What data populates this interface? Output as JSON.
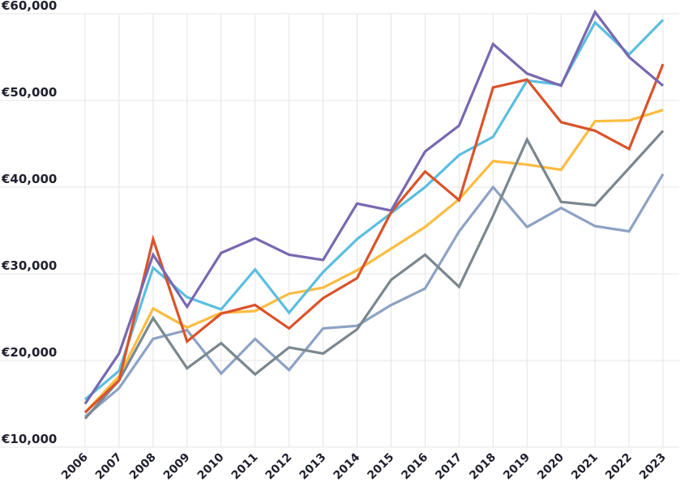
{
  "chart_data": {
    "type": "line",
    "title": "",
    "xlabel": "",
    "ylabel": "",
    "x": [
      "2006",
      "2007",
      "2008",
      "2009",
      "2010",
      "2011",
      "2012",
      "2013",
      "2014",
      "2015",
      "2016",
      "2017",
      "2018",
      "2019",
      "2020",
      "2021",
      "2022",
      "2023"
    ],
    "ylim": [
      10000,
      60000
    ],
    "yticks": [
      10000,
      20000,
      30000,
      40000,
      50000,
      60000
    ],
    "ytick_labels": [
      "€10,000",
      "€20,000",
      "€30,000",
      "€40,000",
      "€50,000",
      "€60,000"
    ],
    "grid": true,
    "legend": "none",
    "series": [
      {
        "color": "#fbbc41",
        "values": [
          14000,
          18200,
          26000,
          23800,
          25500,
          25700,
          27700,
          28400,
          30400,
          32900,
          35400,
          38600,
          43000,
          42600,
          42000,
          47600,
          47700,
          48900
        ]
      },
      {
        "color": "#8da2c4",
        "values": [
          13500,
          16800,
          22500,
          23500,
          18500,
          22500,
          18900,
          23700,
          24000,
          26400,
          28300,
          34900,
          40000,
          35400,
          37600,
          35500,
          34900,
          41500
        ]
      },
      {
        "color": "#7a878f",
        "values": [
          13300,
          17700,
          24900,
          19100,
          22000,
          18400,
          21500,
          20800,
          23600,
          29300,
          32200,
          28500,
          36700,
          45500,
          38300,
          37900,
          42200,
          46500
        ]
      },
      {
        "color": "#5bbee0",
        "values": [
          15500,
          18800,
          30700,
          27300,
          25900,
          30500,
          25500,
          30200,
          34000,
          37000,
          40000,
          43700,
          45800,
          52300,
          51800,
          59000,
          55300,
          59300
        ]
      },
      {
        "color": "#d9532b",
        "values": [
          14000,
          17700,
          34000,
          22200,
          25400,
          26400,
          23700,
          27200,
          29500,
          37100,
          41800,
          38500,
          51500,
          52400,
          47500,
          46500,
          44400,
          54200
        ]
      },
      {
        "color": "#7868b0",
        "values": [
          15000,
          20800,
          32200,
          26200,
          32400,
          34100,
          32200,
          31600,
          38100,
          37300,
          44100,
          47100,
          56500,
          53100,
          51700,
          60200,
          55000,
          51700
        ]
      }
    ]
  }
}
